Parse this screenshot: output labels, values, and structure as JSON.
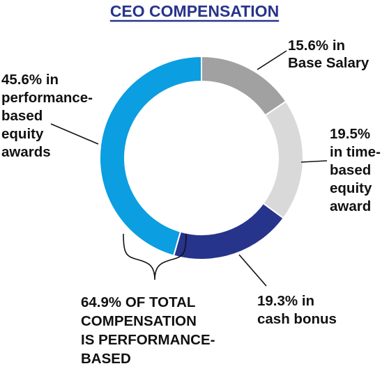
{
  "chart_data": {
    "type": "donut",
    "title": "CEO COMPENSATION",
    "slices": [
      {
        "label_lines": [
          "15.6% in",
          "Base Salary"
        ],
        "value": 15.6,
        "color": "#a1a1a1"
      },
      {
        "label_lines": [
          "19.5%",
          "in time-",
          "based",
          "equity",
          "award"
        ],
        "value": 19.5,
        "color": "#d9d9d9"
      },
      {
        "label_lines": [
          "19.3% in",
          "cash bonus"
        ],
        "value": 19.3,
        "color": "#27348b"
      },
      {
        "label_lines": [
          "45.6% in",
          "performance-",
          "based",
          "equity",
          "awards"
        ],
        "value": 45.6,
        "color": "#0b9ee0"
      }
    ],
    "annotation_lines": [
      "64.9% OF TOTAL",
      "COMPENSATION",
      "IS PERFORMANCE-",
      "BASED"
    ],
    "legend": "none"
  }
}
